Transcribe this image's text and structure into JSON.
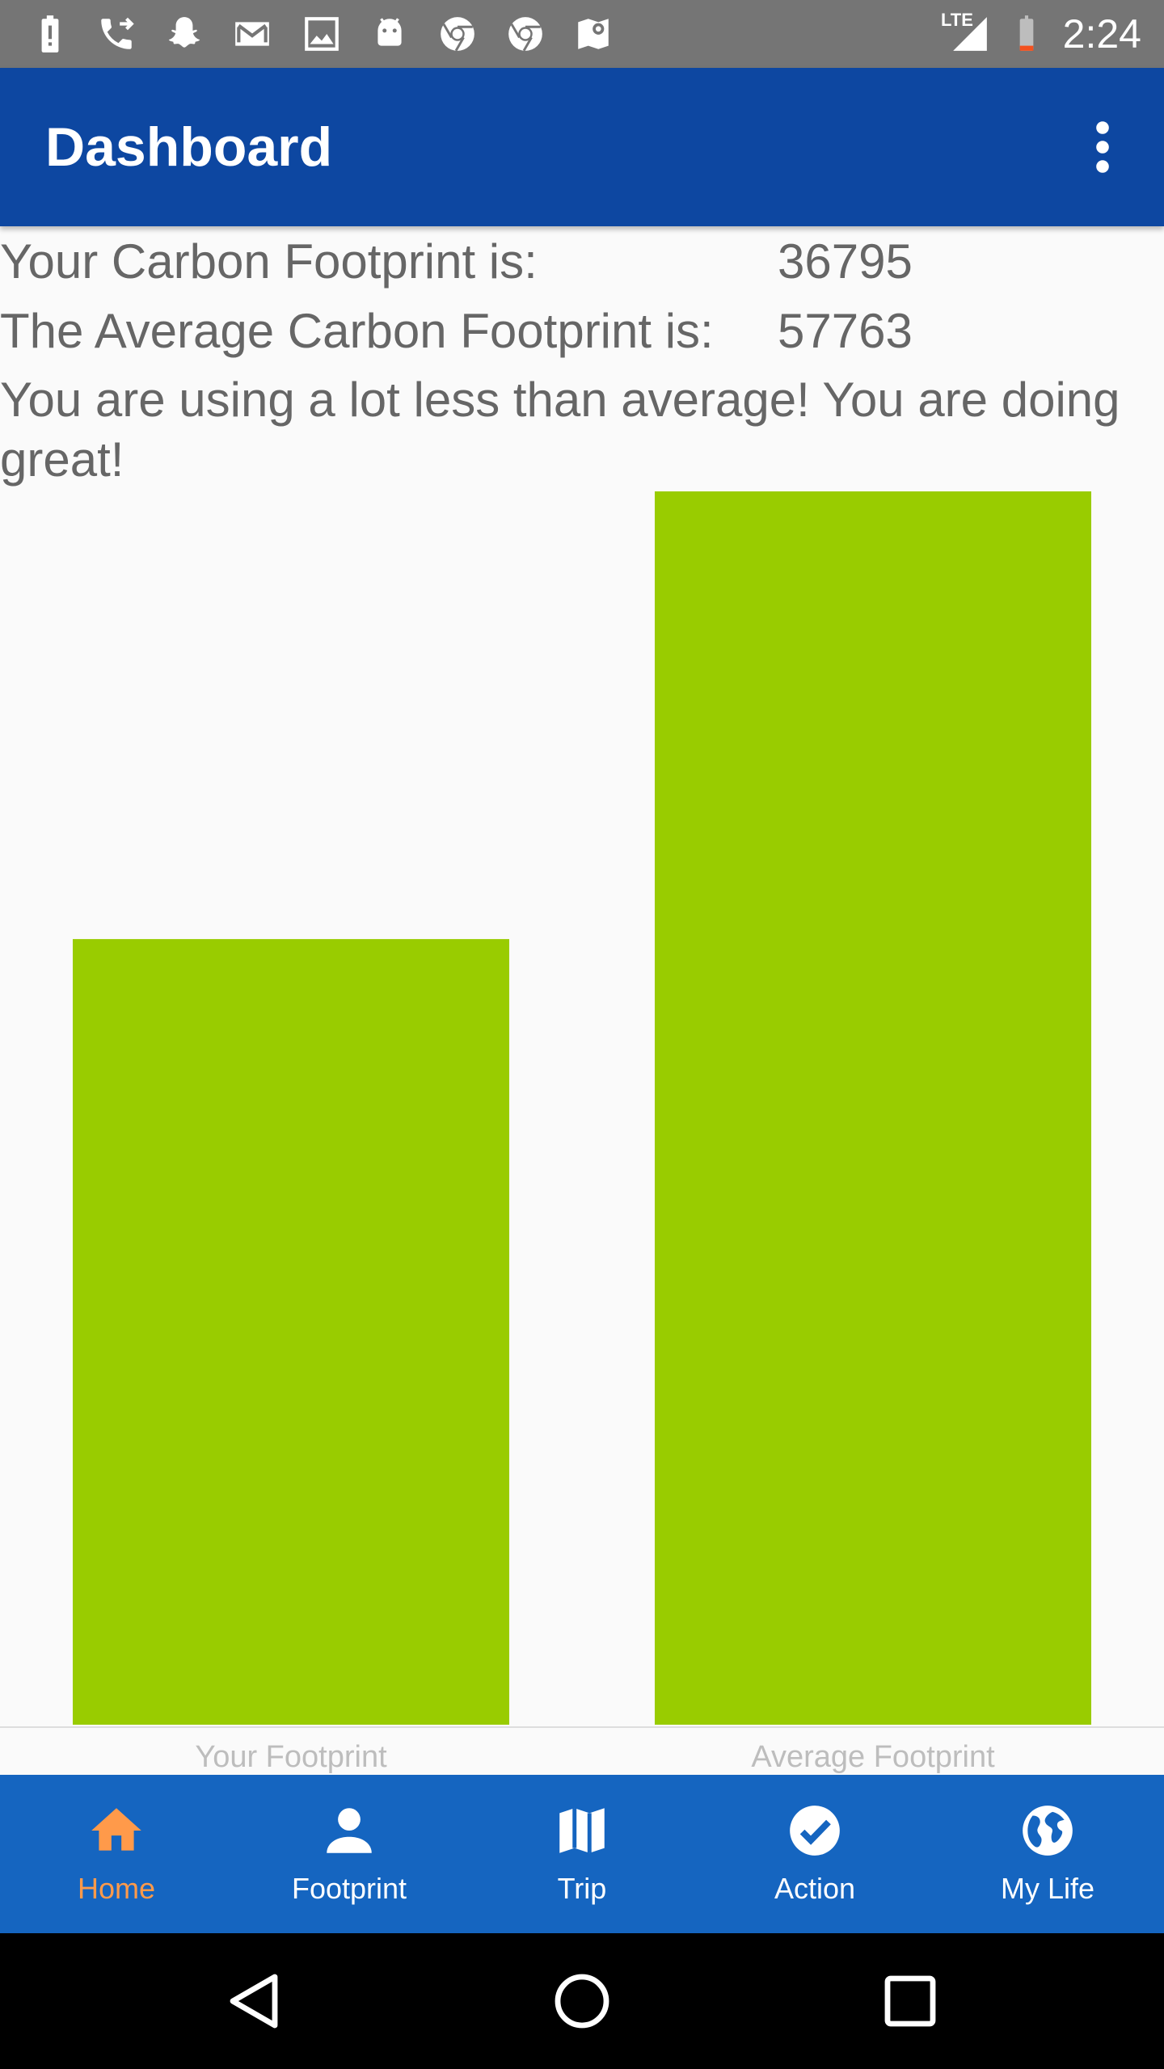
{
  "status_bar": {
    "time": "2:24",
    "network": "LTE",
    "icons": [
      "battery-alert-icon",
      "phone-forwarded-icon",
      "snapchat-icon",
      "gmail-icon",
      "image-icon",
      "android-icon",
      "chrome-icon",
      "chrome-icon",
      "maps-icon"
    ]
  },
  "app_bar": {
    "title": "Dashboard"
  },
  "summary": {
    "your_label": "Your Carbon Footprint is:",
    "your_value": "36795",
    "average_label": "The Average Carbon Footprint is:",
    "average_value": "57763",
    "message": "You are using a lot less than average! You are doing great!"
  },
  "chart_data": {
    "type": "bar",
    "categories": [
      "Your Footprint",
      "Average Footprint"
    ],
    "values": [
      36795,
      57763
    ],
    "bar_color": "#99cc00",
    "ylim": [
      0,
      57763
    ],
    "grid": false,
    "legend": "none"
  },
  "bottom_nav": {
    "active_color": "#ff9a4a",
    "items": [
      {
        "label": "Home",
        "icon": "home-icon",
        "active": true
      },
      {
        "label": "Footprint",
        "icon": "person-icon",
        "active": false
      },
      {
        "label": "Trip",
        "icon": "map-icon",
        "active": false
      },
      {
        "label": "Action",
        "icon": "check-circle-icon",
        "active": false
      },
      {
        "label": "My Life",
        "icon": "globe-icon",
        "active": false
      }
    ]
  },
  "system_nav": {
    "buttons": [
      "back-icon",
      "home-circle-icon",
      "recents-icon"
    ]
  }
}
